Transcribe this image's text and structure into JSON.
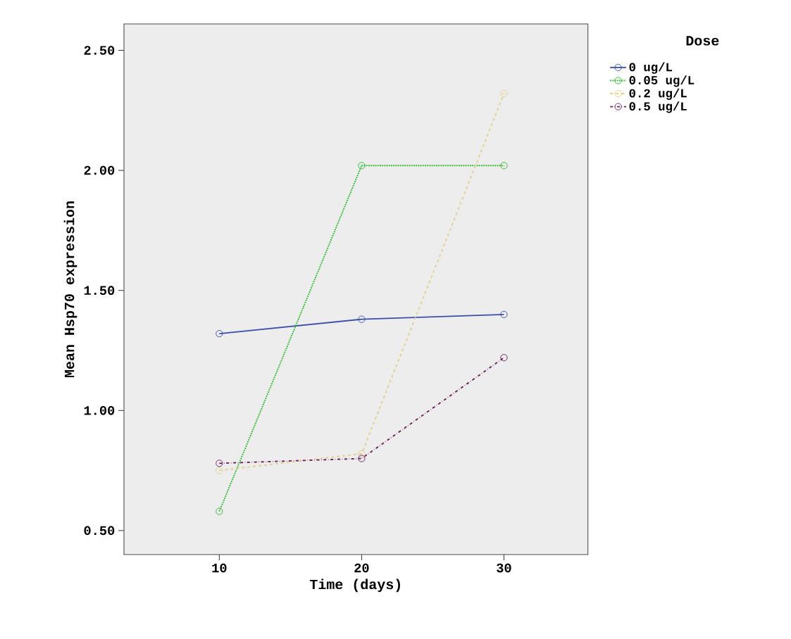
{
  "chart_data": {
    "type": "line",
    "xlabel": "Time (days)",
    "ylabel": "Mean Hsp70 expression",
    "legend_title": "Dose",
    "x": [
      10,
      20,
      30
    ],
    "series": [
      {
        "name": "0 ug/L",
        "color": "#3c4fa8",
        "line_style": "solid",
        "values": [
          1.32,
          1.38,
          1.4
        ]
      },
      {
        "name": "0.05 ug/L",
        "color": "#2eb82e",
        "line_style": "dotted",
        "values": [
          0.58,
          2.02,
          2.02
        ]
      },
      {
        "name": "0.2 ug/L",
        "color": "#e0d08c",
        "line_style": "dashed",
        "values": [
          0.75,
          0.82,
          2.32
        ]
      },
      {
        "name": "0.5 ug/L",
        "color": "#6b1f5a",
        "line_style": "dashdot",
        "values": [
          0.78,
          0.8,
          1.22
        ]
      }
    ],
    "xlim": [
      3.3,
      35.9
    ],
    "ylim": [
      0.4,
      2.61
    ],
    "xticks": [
      10,
      20,
      30
    ],
    "yticks": [
      {
        "value": 0.5,
        "label": "0.50"
      },
      {
        "value": 1.0,
        "label": "1.00"
      },
      {
        "value": 1.5,
        "label": "1.50"
      },
      {
        "value": 2.0,
        "label": "2.00"
      },
      {
        "value": 2.5,
        "label": "2.50"
      }
    ],
    "marker": "circle",
    "legend": "top right",
    "grid": false
  }
}
